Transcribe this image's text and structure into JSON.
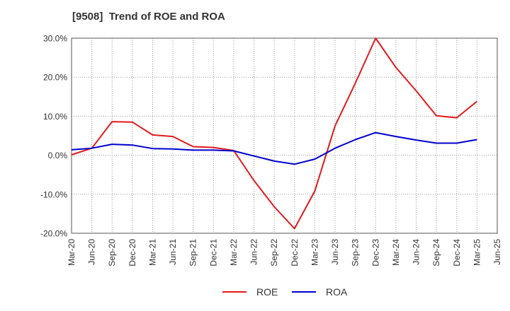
{
  "chart_data": {
    "type": "line",
    "title": "[9508]  Trend of ROE and ROA",
    "xlabel": "",
    "ylabel": "",
    "x": [
      "Mar-20",
      "Jun-20",
      "Sep-20",
      "Dec-20",
      "Mar-21",
      "Jun-21",
      "Sep-21",
      "Dec-21",
      "Mar-22",
      "Jun-22",
      "Sep-22",
      "Dec-22",
      "Mar-23",
      "Jun-23",
      "Sep-23",
      "Dec-23",
      "Mar-24",
      "Jun-24",
      "Sep-24",
      "Dec-24",
      "Mar-25",
      "Jun-25"
    ],
    "ylim": [
      -20,
      30
    ],
    "yticks": [
      30,
      20,
      10,
      0,
      -10,
      -20
    ],
    "ytick_labels": [
      "30.0%",
      "20.0%",
      "10.0%",
      "0.0%",
      "-10.0%",
      "-20.0%"
    ],
    "grid": true,
    "legend_position": "bottom",
    "series": [
      {
        "name": "ROE",
        "color": "#e31a1c",
        "values": [
          0.1,
          1.8,
          8.6,
          8.5,
          5.2,
          4.8,
          2.2,
          2.0,
          1.2,
          -6.5,
          -13.2,
          -18.8,
          -9.2,
          7.5,
          18.5,
          30.0,
          22.5,
          16.5,
          10.1,
          9.6,
          13.8,
          null
        ]
      },
      {
        "name": "ROA",
        "color": "#0000cc",
        "values": [
          1.4,
          1.8,
          2.8,
          2.6,
          1.7,
          1.6,
          1.3,
          1.3,
          1.1,
          -0.2,
          -1.5,
          -2.3,
          -1.0,
          1.8,
          4.0,
          5.8,
          4.8,
          3.9,
          3.1,
          3.1,
          4.0,
          null
        ]
      }
    ]
  }
}
